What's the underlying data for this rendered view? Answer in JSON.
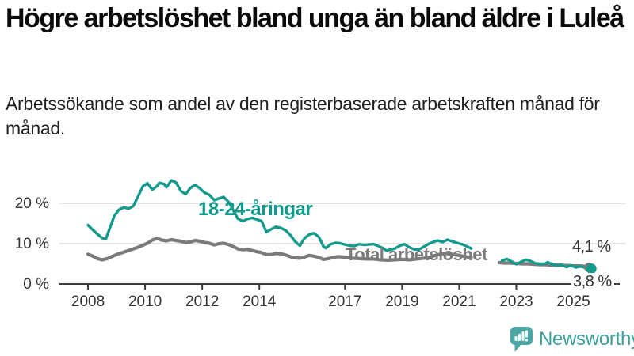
{
  "header": {
    "title": "Högre arbetslöshet bland unga än bland äldre i Luleå",
    "subtitle": "Arbetssökande som andel av den registerbaserade arbetskraften månad för månad."
  },
  "chart_data": {
    "type": "line",
    "title": "Högre arbetslöshet bland unga än bland äldre i Luleå",
    "subtitle": "Arbetssökande som andel av den registerbaserade arbetskraften månad för månad.",
    "xlabel": "",
    "ylabel": "",
    "unit": "%",
    "xlim": [
      2007.0,
      2026.9
    ],
    "ylim": [
      0,
      26.5
    ],
    "grid": "horizontal",
    "legend_position": "inline-labels-on-lines",
    "data_gap_note": "both series have a gap between mid-2021 and mid-2022",
    "xticks": [
      {
        "value": 2008,
        "label": "2008"
      },
      {
        "value": 2010,
        "label": "2010"
      },
      {
        "value": 2012,
        "label": "2012"
      },
      {
        "value": 2014,
        "label": "2014"
      },
      {
        "value": 2017,
        "label": "2017"
      },
      {
        "value": 2019,
        "label": "2019"
      },
      {
        "value": 2021,
        "label": "2021"
      },
      {
        "value": 2023,
        "label": "2023"
      },
      {
        "value": 2025,
        "label": "2025"
      }
    ],
    "yticks": [
      {
        "value": 0,
        "label": "0 %"
      },
      {
        "value": 10,
        "label": "10 %"
      },
      {
        "value": 20,
        "label": "20 %"
      }
    ],
    "series": [
      {
        "name": "Total arbetslöshet",
        "color": "#7b7b7b",
        "line_width": 4.2,
        "end_value": 4.1,
        "end_label": "4,1 %",
        "segments": [
          [
            [
              2008.0,
              7.4
            ],
            [
              2008.17,
              6.9
            ],
            [
              2008.33,
              6.3
            ],
            [
              2008.5,
              6.0
            ],
            [
              2008.67,
              6.3
            ],
            [
              2008.83,
              6.8
            ],
            [
              2009.0,
              7.3
            ],
            [
              2009.25,
              7.9
            ],
            [
              2009.5,
              8.5
            ],
            [
              2009.75,
              9.1
            ],
            [
              2009.92,
              9.6
            ],
            [
              2010.08,
              10.1
            ],
            [
              2010.25,
              10.9
            ],
            [
              2010.42,
              11.3
            ],
            [
              2010.58,
              10.9
            ],
            [
              2010.75,
              10.7
            ],
            [
              2010.92,
              11.0
            ],
            [
              2011.08,
              10.8
            ],
            [
              2011.25,
              10.6
            ],
            [
              2011.42,
              10.3
            ],
            [
              2011.58,
              10.4
            ],
            [
              2011.75,
              10.8
            ],
            [
              2011.92,
              10.6
            ],
            [
              2012.08,
              10.3
            ],
            [
              2012.25,
              10.1
            ],
            [
              2012.42,
              9.7
            ],
            [
              2012.58,
              10.0
            ],
            [
              2012.75,
              10.1
            ],
            [
              2012.92,
              9.8
            ],
            [
              2013.08,
              9.3
            ],
            [
              2013.25,
              8.7
            ],
            [
              2013.42,
              8.5
            ],
            [
              2013.58,
              8.6
            ],
            [
              2013.75,
              8.3
            ],
            [
              2013.92,
              8.0
            ],
            [
              2014.08,
              7.8
            ],
            [
              2014.25,
              7.3
            ],
            [
              2014.42,
              7.3
            ],
            [
              2014.58,
              7.6
            ],
            [
              2014.75,
              7.5
            ],
            [
              2014.92,
              7.2
            ],
            [
              2015.08,
              6.8
            ],
            [
              2015.25,
              6.5
            ],
            [
              2015.42,
              6.4
            ],
            [
              2015.58,
              6.7
            ],
            [
              2015.75,
              7.1
            ],
            [
              2015.92,
              6.9
            ],
            [
              2016.08,
              6.6
            ],
            [
              2016.25,
              6.1
            ],
            [
              2016.42,
              6.3
            ],
            [
              2016.58,
              6.6
            ],
            [
              2016.75,
              6.8
            ],
            [
              2016.92,
              6.7
            ],
            [
              2017.08,
              6.6
            ],
            [
              2017.25,
              6.4
            ],
            [
              2017.5,
              6.3
            ],
            [
              2017.75,
              6.2
            ],
            [
              2018.0,
              6.2
            ],
            [
              2018.25,
              6.0
            ],
            [
              2018.5,
              5.9
            ],
            [
              2018.75,
              6.0
            ],
            [
              2019.0,
              6.1
            ],
            [
              2019.25,
              6.0
            ],
            [
              2019.5,
              6.2
            ],
            [
              2019.75,
              6.4
            ],
            [
              2020.0,
              6.7
            ],
            [
              2020.25,
              7.3
            ],
            [
              2020.5,
              7.6
            ],
            [
              2020.75,
              7.4
            ],
            [
              2021.0,
              7.1
            ],
            [
              2021.2,
              6.8
            ],
            [
              2021.42,
              6.6
            ]
          ],
          [
            [
              2022.4,
              5.3
            ],
            [
              2022.6,
              5.2
            ],
            [
              2022.8,
              5.2
            ],
            [
              2023.0,
              5.1
            ],
            [
              2023.2,
              5.0
            ],
            [
              2023.4,
              5.0
            ],
            [
              2023.6,
              4.9
            ],
            [
              2023.8,
              4.8
            ],
            [
              2024.0,
              4.8
            ],
            [
              2024.2,
              4.7
            ],
            [
              2024.4,
              4.7
            ],
            [
              2024.6,
              4.6
            ],
            [
              2024.8,
              4.6
            ],
            [
              2025.0,
              4.5
            ],
            [
              2025.2,
              4.5
            ],
            [
              2025.4,
              4.4
            ],
            [
              2025.6,
              4.1
            ]
          ]
        ]
      },
      {
        "name": "18-24-åringar",
        "color": "#149a8c",
        "line_width": 3.4,
        "end_value": 3.8,
        "end_label": "3,8 %",
        "segments": [
          [
            [
              2008.0,
              14.6
            ],
            [
              2008.17,
              13.4
            ],
            [
              2008.33,
              12.4
            ],
            [
              2008.5,
              11.4
            ],
            [
              2008.62,
              11.1
            ],
            [
              2008.75,
              13.6
            ],
            [
              2008.92,
              16.9
            ],
            [
              2009.08,
              18.4
            ],
            [
              2009.25,
              19.0
            ],
            [
              2009.42,
              18.7
            ],
            [
              2009.58,
              19.3
            ],
            [
              2009.75,
              21.7
            ],
            [
              2009.92,
              24.2
            ],
            [
              2010.08,
              25.0
            ],
            [
              2010.25,
              23.4
            ],
            [
              2010.42,
              24.3
            ],
            [
              2010.5,
              25.1
            ],
            [
              2010.67,
              24.8
            ],
            [
              2010.75,
              24.0
            ],
            [
              2010.92,
              25.7
            ],
            [
              2011.08,
              25.2
            ],
            [
              2011.25,
              23.1
            ],
            [
              2011.42,
              22.3
            ],
            [
              2011.58,
              23.8
            ],
            [
              2011.75,
              24.6
            ],
            [
              2011.92,
              23.7
            ],
            [
              2012.08,
              22.7
            ],
            [
              2012.25,
              22.1
            ],
            [
              2012.42,
              20.8
            ],
            [
              2012.58,
              21.2
            ],
            [
              2012.75,
              21.6
            ],
            [
              2012.92,
              20.4
            ],
            [
              2013.08,
              18.4
            ],
            [
              2013.25,
              16.2
            ],
            [
              2013.42,
              15.6
            ],
            [
              2013.58,
              16.1
            ],
            [
              2013.75,
              16.4
            ],
            [
              2013.92,
              16.0
            ],
            [
              2014.08,
              15.6
            ],
            [
              2014.25,
              12.9
            ],
            [
              2014.42,
              13.6
            ],
            [
              2014.58,
              14.2
            ],
            [
              2014.75,
              13.9
            ],
            [
              2014.92,
              13.3
            ],
            [
              2015.08,
              12.2
            ],
            [
              2015.25,
              10.6
            ],
            [
              2015.42,
              9.5
            ],
            [
              2015.58,
              11.3
            ],
            [
              2015.75,
              12.3
            ],
            [
              2015.92,
              12.6
            ],
            [
              2016.08,
              11.7
            ],
            [
              2016.25,
              9.3
            ],
            [
              2016.33,
              8.9
            ],
            [
              2016.5,
              9.9
            ],
            [
              2016.67,
              10.2
            ],
            [
              2016.83,
              10.1
            ],
            [
              2017.0,
              9.8
            ],
            [
              2017.17,
              9.5
            ],
            [
              2017.33,
              9.4
            ],
            [
              2017.5,
              9.9
            ],
            [
              2017.67,
              9.7
            ],
            [
              2017.83,
              9.8
            ],
            [
              2018.0,
              9.9
            ],
            [
              2018.17,
              9.4
            ],
            [
              2018.33,
              8.9
            ],
            [
              2018.45,
              8.3
            ],
            [
              2018.58,
              8.5
            ],
            [
              2018.75,
              8.8
            ],
            [
              2018.92,
              9.5
            ],
            [
              2019.08,
              9.9
            ],
            [
              2019.25,
              9.1
            ],
            [
              2019.42,
              8.6
            ],
            [
              2019.58,
              8.5
            ],
            [
              2019.75,
              9.2
            ],
            [
              2019.92,
              9.9
            ],
            [
              2020.08,
              10.4
            ],
            [
              2020.25,
              10.8
            ],
            [
              2020.42,
              10.4
            ],
            [
              2020.58,
              11.0
            ],
            [
              2020.75,
              10.6
            ],
            [
              2020.92,
              10.2
            ],
            [
              2021.08,
              9.9
            ],
            [
              2021.25,
              9.4
            ],
            [
              2021.42,
              8.8
            ]
          ],
          [
            [
              2022.5,
              5.8
            ],
            [
              2022.67,
              6.2
            ],
            [
              2022.83,
              5.6
            ],
            [
              2023.0,
              4.9
            ],
            [
              2023.17,
              5.5
            ],
            [
              2023.33,
              6.0
            ],
            [
              2023.5,
              5.7
            ],
            [
              2023.67,
              5.1
            ],
            [
              2023.83,
              5.0
            ],
            [
              2024.0,
              5.0
            ],
            [
              2024.1,
              5.4
            ],
            [
              2024.25,
              4.9
            ],
            [
              2024.42,
              4.6
            ],
            [
              2024.58,
              4.8
            ],
            [
              2024.75,
              4.2
            ],
            [
              2024.92,
              4.6
            ],
            [
              2025.08,
              4.1
            ],
            [
              2025.25,
              4.4
            ],
            [
              2025.42,
              4.0
            ],
            [
              2025.5,
              4.1
            ],
            [
              2025.6,
              3.8
            ]
          ]
        ]
      }
    ]
  },
  "branding": {
    "name": "Newsworthy",
    "text_color": "#3ba19c",
    "icon": "bar-chart-speech-bubble-icon",
    "icon_color": "#4ba7a3"
  }
}
